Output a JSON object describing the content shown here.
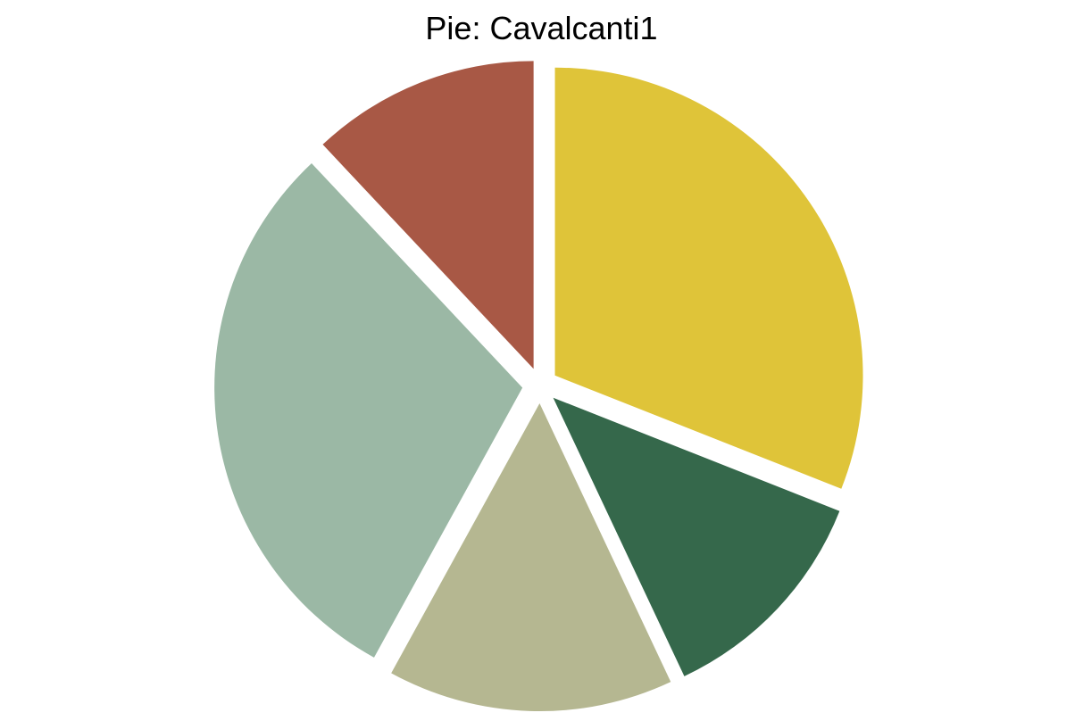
{
  "chart_data": {
    "type": "pie",
    "title": "Pie: Cavalcanti1",
    "slices": [
      {
        "value": 0.31,
        "color": "#DFC439"
      },
      {
        "value": 0.12,
        "color": "#35684B"
      },
      {
        "value": 0.15,
        "color": "#B5B791"
      },
      {
        "value": 0.3,
        "color": "#9BB8A5"
      },
      {
        "value": 0.12,
        "color": "#A85845"
      }
    ],
    "start": "top",
    "direction": "clockwise",
    "exploded": true
  }
}
